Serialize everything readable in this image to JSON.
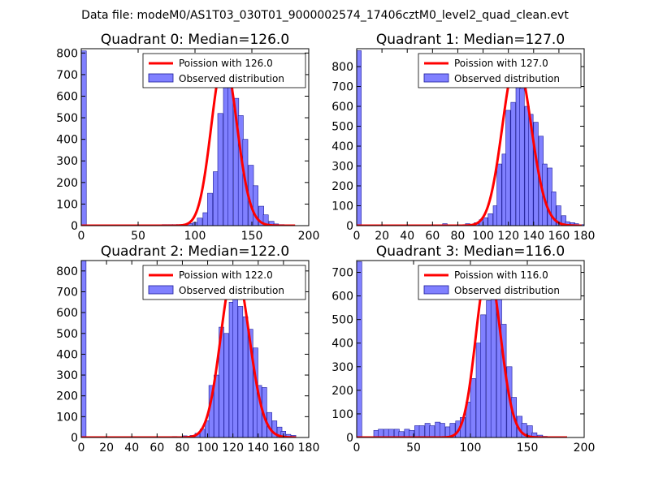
{
  "figure": {
    "suptitle": "Data file: modeM0/AS1T03_030T01_9000002574_17406cztM0_level2_quad_clean.evt",
    "colors": {
      "bar_fill": "#8080ff",
      "bar_edge": "#1a1a99",
      "line": "#ff0000",
      "background": "#ffffff",
      "axes": "#000000"
    }
  },
  "chart_data": [
    {
      "type": "bar",
      "title": "Quadrant 0: Median=126.0",
      "xlim": [
        0,
        200
      ],
      "ylim": [
        0,
        820
      ],
      "xticks": [
        "0",
        "50",
        "100",
        "150",
        "200"
      ],
      "xtick_values": [
        0,
        50,
        100,
        150,
        200
      ],
      "yticks": [
        "0",
        "100",
        "200",
        "300",
        "400",
        "500",
        "600",
        "700",
        "800"
      ],
      "ytick_values": [
        0,
        100,
        200,
        300,
        400,
        500,
        600,
        700,
        800
      ],
      "bin_width": 4.45,
      "bins": [
        [
          0,
          810
        ],
        [
          71,
          5
        ],
        [
          76,
          5
        ],
        [
          80,
          5
        ],
        [
          84,
          5
        ],
        [
          89,
          5
        ],
        [
          93,
          10
        ],
        [
          98,
          15
        ],
        [
          102,
          35
        ],
        [
          107,
          60
        ],
        [
          111,
          150
        ],
        [
          116,
          250
        ],
        [
          120,
          520
        ],
        [
          125,
          660
        ],
        [
          129,
          690
        ],
        [
          134,
          590
        ],
        [
          138,
          510
        ],
        [
          142,
          400
        ],
        [
          147,
          280
        ],
        [
          151,
          185
        ],
        [
          156,
          90
        ],
        [
          160,
          50
        ],
        [
          165,
          20
        ],
        [
          169,
          8
        ],
        [
          174,
          5
        ]
      ],
      "curve": {
        "type": "poisson",
        "mean": 126.0,
        "peak": 770,
        "xrange": [
          0,
          188
        ],
        "label": "Poission with 126.0"
      },
      "legend": {
        "position": "upper right",
        "entries": [
          "Poission with 126.0",
          "Observed distribution"
        ]
      }
    },
    {
      "type": "bar",
      "title": "Quadrant 1: Median=127.0",
      "xlim": [
        0,
        180
      ],
      "ylim": [
        0,
        890
      ],
      "xticks": [
        "0",
        "20",
        "40",
        "60",
        "80",
        "100",
        "120",
        "140",
        "160",
        "180"
      ],
      "xtick_values": [
        0,
        20,
        40,
        60,
        80,
        100,
        120,
        140,
        160,
        180
      ],
      "yticks": [
        "0",
        "100",
        "200",
        "300",
        "400",
        "500",
        "600",
        "700",
        "800"
      ],
      "ytick_values": [
        0,
        100,
        200,
        300,
        400,
        500,
        600,
        700,
        800
      ],
      "bin_width": 3.6,
      "bins": [
        [
          0,
          880
        ],
        [
          68,
          10
        ],
        [
          86,
          10
        ],
        [
          93,
          15
        ],
        [
          97,
          30
        ],
        [
          100,
          40
        ],
        [
          104,
          60
        ],
        [
          108,
          100
        ],
        [
          111,
          310
        ],
        [
          115,
          360
        ],
        [
          118,
          580
        ],
        [
          122,
          620
        ],
        [
          126,
          790
        ],
        [
          129,
          690
        ],
        [
          133,
          600
        ],
        [
          136,
          560
        ],
        [
          140,
          520
        ],
        [
          144,
          450
        ],
        [
          147,
          310
        ],
        [
          151,
          290
        ],
        [
          154,
          170
        ],
        [
          158,
          100
        ],
        [
          162,
          50
        ],
        [
          165,
          20
        ],
        [
          169,
          15
        ],
        [
          172,
          10
        ],
        [
          176,
          5
        ]
      ],
      "curve": {
        "type": "poisson",
        "mean": 127.0,
        "peak": 835,
        "xrange": [
          0,
          178
        ],
        "label": "Poission with 127.0"
      },
      "legend": {
        "position": "upper right",
        "entries": [
          "Poission with 127.0",
          "Observed distribution"
        ]
      }
    },
    {
      "type": "bar",
      "title": "Quadrant 2: Median=122.0",
      "xlim": [
        0,
        180
      ],
      "ylim": [
        0,
        850
      ],
      "xticks": [
        "0",
        "20",
        "40",
        "60",
        "80",
        "100",
        "120",
        "140",
        "160",
        "180"
      ],
      "xtick_values": [
        0,
        20,
        40,
        60,
        80,
        100,
        120,
        140,
        160,
        180
      ],
      "yticks": [
        "0",
        "100",
        "200",
        "300",
        "400",
        "500",
        "600",
        "700",
        "800"
      ],
      "ytick_values": [
        0,
        100,
        200,
        300,
        400,
        500,
        600,
        700,
        800
      ],
      "bin_width": 3.8,
      "bins": [
        [
          0,
          850
        ],
        [
          72,
          5
        ],
        [
          80,
          8
        ],
        [
          86,
          10
        ],
        [
          90,
          20
        ],
        [
          94,
          40
        ],
        [
          98,
          80
        ],
        [
          101,
          250
        ],
        [
          105,
          300
        ],
        [
          109,
          530
        ],
        [
          113,
          500
        ],
        [
          117,
          650
        ],
        [
          120,
          740
        ],
        [
          124,
          630
        ],
        [
          128,
          580
        ],
        [
          132,
          520
        ],
        [
          136,
          430
        ],
        [
          139,
          250
        ],
        [
          143,
          240
        ],
        [
          147,
          120
        ],
        [
          151,
          80
        ],
        [
          155,
          50
        ],
        [
          158,
          30
        ],
        [
          162,
          15
        ],
        [
          166,
          10
        ]
      ],
      "curve": {
        "type": "poisson",
        "mean": 122.0,
        "peak": 820,
        "xrange": [
          0,
          170
        ],
        "label": "Poission with 122.0"
      },
      "legend": {
        "position": "upper right",
        "entries": [
          "Poission with 122.0",
          "Observed distribution"
        ]
      }
    },
    {
      "type": "bar",
      "title": "Quadrant 3: Median=116.0",
      "xlim": [
        0,
        200
      ],
      "ylim": [
        0,
        750
      ],
      "xticks": [
        "0",
        "50",
        "100",
        "150",
        "200"
      ],
      "xtick_values": [
        0,
        50,
        100,
        150,
        200
      ],
      "yticks": [
        "0",
        "100",
        "200",
        "300",
        "400",
        "500",
        "600",
        "700"
      ],
      "ytick_values": [
        0,
        100,
        200,
        300,
        400,
        500,
        600,
        700
      ],
      "bin_width": 4.5,
      "bins": [
        [
          0,
          745
        ],
        [
          15,
          30
        ],
        [
          19,
          35
        ],
        [
          24,
          35
        ],
        [
          28,
          35
        ],
        [
          33,
          35
        ],
        [
          37,
          25
        ],
        [
          42,
          35
        ],
        [
          46,
          30
        ],
        [
          51,
          50
        ],
        [
          55,
          50
        ],
        [
          60,
          60
        ],
        [
          64,
          50
        ],
        [
          69,
          65
        ],
        [
          73,
          60
        ],
        [
          78,
          45
        ],
        [
          82,
          60
        ],
        [
          87,
          70
        ],
        [
          91,
          85
        ],
        [
          96,
          150
        ],
        [
          100,
          250
        ],
        [
          105,
          400
        ],
        [
          109,
          520
        ],
        [
          114,
          580
        ],
        [
          118,
          710
        ],
        [
          123,
          590
        ],
        [
          127,
          480
        ],
        [
          132,
          300
        ],
        [
          136,
          170
        ],
        [
          141,
          90
        ],
        [
          145,
          60
        ],
        [
          150,
          50
        ],
        [
          154,
          20
        ],
        [
          159,
          10
        ],
        [
          163,
          5
        ]
      ],
      "curve": {
        "type": "poisson",
        "mean": 116.0,
        "peak": 720,
        "xrange": [
          0,
          185
        ],
        "label": "Poission with 116.0"
      },
      "legend": {
        "position": "upper right",
        "entries": [
          "Poission with 116.0",
          "Observed distribution"
        ]
      }
    }
  ]
}
